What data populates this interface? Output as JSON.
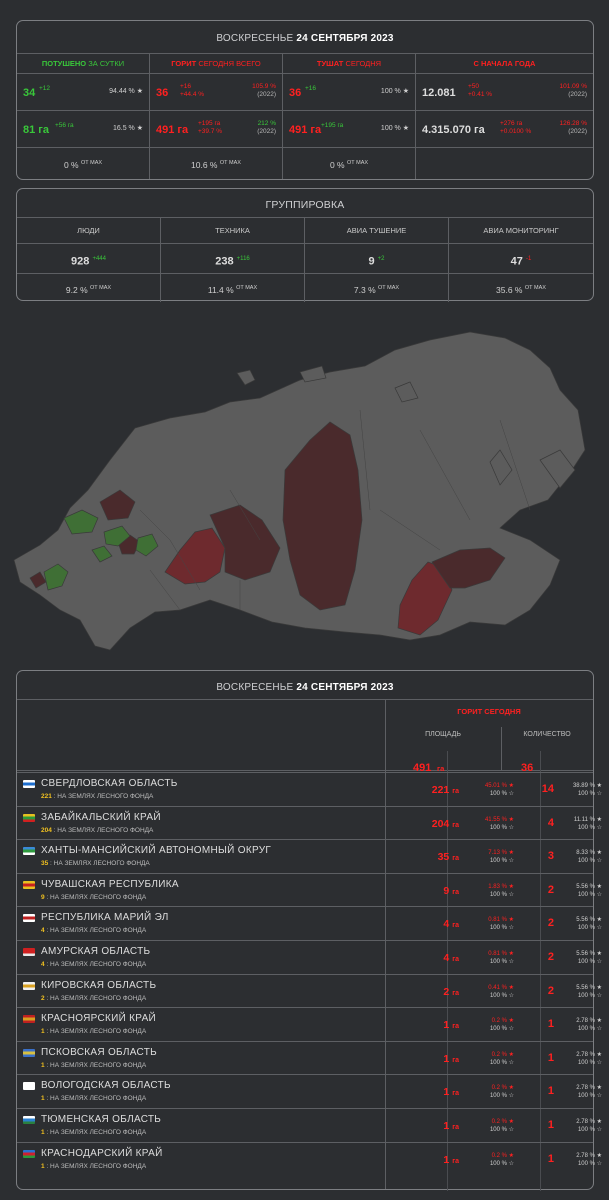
{
  "stats": {
    "day": "ВОСКРЕСЕНЬЕ",
    "date": "24 СЕНТЯБРЯ 2023",
    "cols": [
      {
        "head_a": "ПОТУШЕНО",
        "head_b": "ЗА СУТКИ",
        "n1": "34",
        "n1_sup": "+12",
        "n1_right": "94.44 % ★",
        "a1": "81 га",
        "a1_sup": "+56 га",
        "a1_right": "16.5 % ★",
        "max": "0 %",
        "max_sup": "ОТ MAX"
      },
      {
        "head_a": "ГОРИТ",
        "head_b": "СЕГОДНЯ ВСЕГО",
        "n1": "36",
        "n1_sup": "+16",
        "n1_sup2": "+44.4 %",
        "n1_right": "105.9 %",
        "n1_right2": "(2022)",
        "a1": "491 га",
        "a1_sup": "+195 га",
        "a1_sup2": "+39.7 %",
        "a1_right": "212 %",
        "a1_right2": "(2022)",
        "max": "10.6 %",
        "max_sup": "ОТ MAX"
      },
      {
        "head_a": "ТУШАТ",
        "head_b": "СЕГОДНЯ",
        "n1": "36",
        "n1_sup": "+16",
        "n1_right": "100 % ★",
        "a1": "491 га",
        "a1_sup": "+195 га",
        "a1_right": "100 % ★",
        "max": "0 %",
        "max_sup": "ОТ MAX"
      },
      {
        "head_a": "С НАЧАЛА ГОДА",
        "head_b": "",
        "n1": "12.081",
        "n1_sup": "+50",
        "n1_sup2": "+0.41 %",
        "n1_right": "101.09 %",
        "n1_right2": "(2022)",
        "a1": "4.315.070 га",
        "a1_sup": "+276 га",
        "a1_sup2": "+0.0100 %",
        "a1_right": "126.28 %",
        "a1_right2": "(2022)"
      }
    ]
  },
  "group": {
    "title": "ГРУППИРОВКА",
    "cols": [
      {
        "label": "ЛЮДИ",
        "value": "928",
        "delta": "+444",
        "delta_color": "#39c73a",
        "max": "9.2 %",
        "max_sup": "ОТ MAX"
      },
      {
        "label": "ТЕХНИКА",
        "value": "238",
        "delta": "+116",
        "delta_color": "#39c73a",
        "max": "11.4 %",
        "max_sup": "ОТ MAX"
      },
      {
        "label": "АВИА ТУШЕНИЕ",
        "value": "9",
        "delta": "+2",
        "delta_color": "#39c73a",
        "max": "7.3 %",
        "max_sup": "ОТ MAX"
      },
      {
        "label": "АВИА МОНИТОРИНГ",
        "value": "47",
        "delta": "-1",
        "delta_color": "#ff2020",
        "max": "35.6 %",
        "max_sup": "ОТ MAX"
      }
    ]
  },
  "table": {
    "day": "ВОСКРЕСЕНЬЕ",
    "date": "24 СЕНТЯБРЯ 2023",
    "head": "ГОРИТ СЕГОДНЯ",
    "col_area": "ПЛОЩАДЬ",
    "col_count": "КОЛИЧЕСТВО",
    "total_area": "491",
    "total_area_unit": "га",
    "total_count": "36",
    "sub_label": ": НА ЗЕМЛЯХ ЛЕСНОГО ФОНДА",
    "rows": [
      {
        "name": "СВЕРДЛОВСКАЯ ОБЛАСТЬ",
        "forest": "221",
        "area": "221",
        "unit": "га",
        "pct": "45.01 % ★",
        "pct2": "100 % ☆",
        "count": "14",
        "cpct": "38.89 % ★",
        "cpct2": "100 % ☆",
        "flag": [
          "#ffffff",
          "#1e6fd0",
          "#ffffff"
        ]
      },
      {
        "name": "ЗАБАЙКАЛЬСКИЙ КРАЙ",
        "forest": "204",
        "area": "204",
        "unit": "га",
        "pct": "41.55 % ★",
        "pct2": "100 % ☆",
        "count": "4",
        "cpct": "11.11 % ★",
        "cpct2": "100 % ☆",
        "flag": [
          "#e6c020",
          "#2a9a3a",
          "#d02020"
        ]
      },
      {
        "name": "ХАНТЫ-МАНСИЙСКИЙ АВТОНОМНЫЙ ОКРУГ",
        "forest": "35",
        "area": "35",
        "unit": "га",
        "pct": "7.13 % ★",
        "pct2": "100 % ☆",
        "count": "3",
        "cpct": "8.33 % ★",
        "cpct2": "100 % ☆",
        "flag": [
          "#3a8ad8",
          "#2e9a3e",
          "#ffffff"
        ]
      },
      {
        "name": "ЧУВАШСКАЯ РЕСПУБЛИКА",
        "forest": "9",
        "area": "9",
        "unit": "га",
        "pct": "1.83 % ★",
        "pct2": "100 % ☆",
        "count": "2",
        "cpct": "5.56 % ★",
        "cpct2": "100 % ☆",
        "flag": [
          "#e8c020",
          "#c82020",
          "#e8c020"
        ]
      },
      {
        "name": "РЕСПУБЛИКА МАРИЙ ЭЛ",
        "forest": "4",
        "area": "4",
        "unit": "га",
        "pct": "0.81 % ★",
        "pct2": "100 % ☆",
        "count": "2",
        "cpct": "5.56 % ★",
        "cpct2": "100 % ☆",
        "flag": [
          "#ffffff",
          "#c02020",
          "#ffffff"
        ]
      },
      {
        "name": "АМУРСКАЯ ОБЛАСТЬ",
        "forest": "4",
        "area": "4",
        "unit": "га",
        "pct": "0.81 % ★",
        "pct2": "100 % ☆",
        "count": "2",
        "cpct": "5.56 % ★",
        "cpct2": "100 % ☆",
        "flag": [
          "#d02020",
          "#d02020",
          "#e8e8e8"
        ]
      },
      {
        "name": "КИРОВСКАЯ ОБЛАСТЬ",
        "forest": "2",
        "area": "2",
        "unit": "га",
        "pct": "0.41 % ★",
        "pct2": "100 % ☆",
        "count": "2",
        "cpct": "5.56 % ★",
        "cpct2": "100 % ☆",
        "flag": [
          "#f0f0f0",
          "#d8a020",
          "#f0f0f0"
        ]
      },
      {
        "name": "КРАСНОЯРСКИЙ КРАЙ",
        "forest": "1",
        "area": "1",
        "unit": "га",
        "pct": "0.2 % ★",
        "pct2": "100 % ☆",
        "count": "1",
        "cpct": "2.78 % ★",
        "cpct2": "100 % ☆",
        "flag": [
          "#c02020",
          "#d8a020",
          "#c02020"
        ]
      },
      {
        "name": "ПСКОВСКАЯ ОБЛАСТЬ",
        "forest": "1",
        "area": "1",
        "unit": "га",
        "pct": "0.2 % ★",
        "pct2": "100 % ☆",
        "count": "1",
        "cpct": "2.78 % ★",
        "cpct2": "100 % ☆",
        "flag": [
          "#3a70c8",
          "#d8c040",
          "#3a70c8"
        ]
      },
      {
        "name": "ВОЛОГОДСКАЯ ОБЛАСТЬ",
        "forest": "1",
        "area": "1",
        "unit": "га",
        "pct": "0.2 % ★",
        "pct2": "100 % ☆",
        "count": "1",
        "cpct": "2.78 % ★",
        "cpct2": "100 % ☆",
        "flag": [
          "#ffffff",
          "#ffffff",
          "#ffffff"
        ]
      },
      {
        "name": "ТЮМЕНСКАЯ ОБЛАСТЬ",
        "forest": "1",
        "area": "1",
        "unit": "га",
        "pct": "0.2 % ★",
        "pct2": "100 % ☆",
        "count": "1",
        "cpct": "2.78 % ★",
        "cpct2": "100 % ☆",
        "flag": [
          "#ffffff",
          "#2a80d0",
          "#2a8040"
        ]
      },
      {
        "name": "КРАСНОДАРСКИЙ КРАЙ",
        "forest": "1",
        "area": "1",
        "unit": "га",
        "pct": "0.2 % ★",
        "pct2": "100 % ☆",
        "count": "1",
        "cpct": "2.78 % ★",
        "cpct2": "100 % ☆",
        "flag": [
          "#2a70d0",
          "#d02030",
          "#2a9a3a"
        ]
      }
    ]
  },
  "map": {
    "base_color": "#5c5c5c",
    "fire_color": "#4a2a2c",
    "fire_hot_color": "#6e2a2e",
    "extinguished_color": "#3f6f35"
  }
}
